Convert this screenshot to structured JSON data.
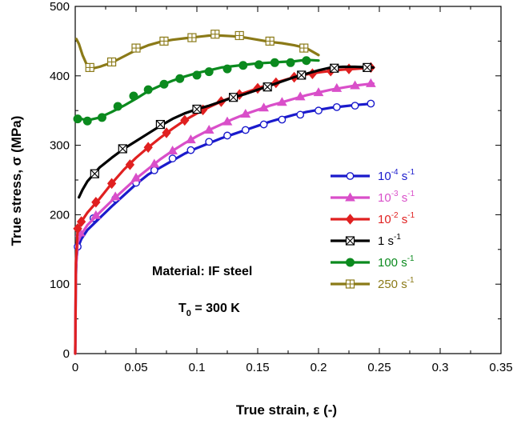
{
  "chart_data": {
    "type": "line",
    "xlabel": "True strain,  ε (-)",
    "ylabel": "True stress,  σ (MPa)",
    "xlim": [
      0,
      0.35
    ],
    "ylim": [
      0,
      500
    ],
    "xticks": [
      "0",
      "0.05",
      "0.1",
      "0.15",
      "0.2",
      "0.25",
      "0.3",
      "0.35"
    ],
    "yticks": [
      "0",
      "100",
      "200",
      "300",
      "400",
      "500"
    ],
    "grid": false,
    "legend_position": "right",
    "annotations": {
      "material": "Material: IF steel",
      "temp_main": "T",
      "temp_sub": "0",
      "temp_rest": " = 300 K"
    },
    "series": [
      {
        "name": "10-4 s-1",
        "label_base": "10",
        "label_exp": "-4",
        "label_unit": " s",
        "label_unit_exp": "-1",
        "color": "#1a1acc",
        "marker": "circle-open",
        "curve": [
          [
            0,
            0
          ],
          [
            0.0005,
            110
          ],
          [
            0.001,
            135
          ],
          [
            0.002,
            152
          ],
          [
            0.005,
            165
          ],
          [
            0.01,
            178
          ],
          [
            0.02,
            195
          ],
          [
            0.03,
            212
          ],
          [
            0.04,
            228
          ],
          [
            0.05,
            244
          ],
          [
            0.06,
            258
          ],
          [
            0.07,
            268
          ],
          [
            0.08,
            278
          ],
          [
            0.09,
            288
          ],
          [
            0.1,
            296
          ],
          [
            0.11,
            303
          ],
          [
            0.12,
            310
          ],
          [
            0.13,
            316
          ],
          [
            0.14,
            322
          ],
          [
            0.15,
            328
          ],
          [
            0.16,
            334
          ],
          [
            0.17,
            339
          ],
          [
            0.18,
            344
          ],
          [
            0.19,
            348
          ],
          [
            0.2,
            351
          ],
          [
            0.21,
            354
          ],
          [
            0.22,
            356
          ],
          [
            0.23,
            358
          ],
          [
            0.245,
            360
          ]
        ],
        "markers": [
          [
            0.002,
            154
          ],
          [
            0.015,
            195
          ],
          [
            0.033,
            223
          ],
          [
            0.05,
            246
          ],
          [
            0.065,
            264
          ],
          [
            0.08,
            281
          ],
          [
            0.095,
            293
          ],
          [
            0.11,
            305
          ],
          [
            0.125,
            314
          ],
          [
            0.14,
            322
          ],
          [
            0.155,
            330
          ],
          [
            0.17,
            337
          ],
          [
            0.185,
            344
          ],
          [
            0.2,
            350
          ],
          [
            0.215,
            355
          ],
          [
            0.23,
            357
          ],
          [
            0.243,
            360
          ]
        ]
      },
      {
        "name": "10-3 s-1",
        "label_base": "10",
        "label_exp": "-3",
        "label_unit": " s",
        "label_unit_exp": "-1",
        "color": "#d94fc9",
        "marker": "triangle",
        "curve": [
          [
            0,
            0
          ],
          [
            0.0005,
            120
          ],
          [
            0.002,
            160
          ],
          [
            0.005,
            172
          ],
          [
            0.01,
            185
          ],
          [
            0.02,
            203
          ],
          [
            0.03,
            220
          ],
          [
            0.04,
            236
          ],
          [
            0.05,
            252
          ],
          [
            0.06,
            266
          ],
          [
            0.07,
            280
          ],
          [
            0.08,
            292
          ],
          [
            0.09,
            303
          ],
          [
            0.1,
            313
          ],
          [
            0.11,
            322
          ],
          [
            0.12,
            330
          ],
          [
            0.13,
            338
          ],
          [
            0.14,
            345
          ],
          [
            0.15,
            351
          ],
          [
            0.16,
            357
          ],
          [
            0.17,
            362
          ],
          [
            0.18,
            367
          ],
          [
            0.19,
            372
          ],
          [
            0.2,
            376
          ],
          [
            0.21,
            380
          ],
          [
            0.22,
            383
          ],
          [
            0.23,
            386
          ],
          [
            0.245,
            389
          ]
        ],
        "markers": [
          [
            0.004,
            174
          ],
          [
            0.017,
            199
          ],
          [
            0.033,
            226
          ],
          [
            0.05,
            253
          ],
          [
            0.065,
            273
          ],
          [
            0.08,
            292
          ],
          [
            0.095,
            308
          ],
          [
            0.11,
            322
          ],
          [
            0.125,
            334
          ],
          [
            0.14,
            345
          ],
          [
            0.155,
            354
          ],
          [
            0.17,
            362
          ],
          [
            0.185,
            370
          ],
          [
            0.2,
            376
          ],
          [
            0.215,
            382
          ],
          [
            0.23,
            386
          ],
          [
            0.243,
            389
          ]
        ]
      },
      {
        "name": "10-2 s-1",
        "label_base": "10",
        "label_exp": "-2",
        "label_unit": " s",
        "label_unit_exp": "-1",
        "color": "#e02020",
        "marker": "diamond",
        "curve": [
          [
            0,
            0
          ],
          [
            0.0005,
            130
          ],
          [
            0.002,
            178
          ],
          [
            0.005,
            190
          ],
          [
            0.01,
            203
          ],
          [
            0.02,
            223
          ],
          [
            0.03,
            245
          ],
          [
            0.04,
            265
          ],
          [
            0.05,
            282
          ],
          [
            0.06,
            297
          ],
          [
            0.07,
            311
          ],
          [
            0.08,
            324
          ],
          [
            0.09,
            336
          ],
          [
            0.1,
            346
          ],
          [
            0.11,
            355
          ],
          [
            0.12,
            363
          ],
          [
            0.13,
            370
          ],
          [
            0.14,
            376
          ],
          [
            0.15,
            382
          ],
          [
            0.16,
            388
          ],
          [
            0.17,
            393
          ],
          [
            0.18,
            398
          ],
          [
            0.19,
            402
          ],
          [
            0.2,
            405
          ],
          [
            0.21,
            407
          ],
          [
            0.22,
            409
          ],
          [
            0.23,
            410
          ],
          [
            0.245,
            412
          ]
        ],
        "markers": [
          [
            0.002,
            180
          ],
          [
            0.005,
            190
          ],
          [
            0.017,
            218
          ],
          [
            0.03,
            245
          ],
          [
            0.045,
            272
          ],
          [
            0.06,
            297
          ],
          [
            0.075,
            318
          ],
          [
            0.09,
            336
          ],
          [
            0.105,
            351
          ],
          [
            0.12,
            363
          ],
          [
            0.135,
            373
          ],
          [
            0.15,
            382
          ],
          [
            0.165,
            390
          ],
          [
            0.18,
            398
          ],
          [
            0.195,
            403
          ],
          [
            0.21,
            407
          ],
          [
            0.225,
            410
          ],
          [
            0.243,
            412
          ]
        ]
      },
      {
        "name": "1 s-1",
        "label_base": "1",
        "label_exp": "",
        "label_unit": " s",
        "label_unit_exp": "-1",
        "color": "#000000",
        "marker": "square-x",
        "curve": [
          [
            0.003,
            225
          ],
          [
            0.006,
            236
          ],
          [
            0.01,
            248
          ],
          [
            0.015,
            258
          ],
          [
            0.02,
            268
          ],
          [
            0.03,
            282
          ],
          [
            0.04,
            295
          ],
          [
            0.05,
            306
          ],
          [
            0.06,
            317
          ],
          [
            0.07,
            328
          ],
          [
            0.08,
            338
          ],
          [
            0.09,
            346
          ],
          [
            0.1,
            352
          ],
          [
            0.11,
            357
          ],
          [
            0.12,
            363
          ],
          [
            0.13,
            369
          ],
          [
            0.14,
            374
          ],
          [
            0.15,
            380
          ],
          [
            0.16,
            386
          ],
          [
            0.17,
            392
          ],
          [
            0.18,
            398
          ],
          [
            0.19,
            403
          ],
          [
            0.2,
            408
          ],
          [
            0.21,
            412
          ],
          [
            0.22,
            413
          ],
          [
            0.23,
            413
          ],
          [
            0.245,
            412
          ]
        ],
        "markers": [
          [
            0.016,
            259
          ],
          [
            0.039,
            295
          ],
          [
            0.07,
            330
          ],
          [
            0.1,
            352
          ],
          [
            0.13,
            369
          ],
          [
            0.158,
            384
          ],
          [
            0.186,
            401
          ],
          [
            0.213,
            411
          ],
          [
            0.24,
            412
          ]
        ]
      },
      {
        "name": "100 s-1",
        "label_base": "100",
        "label_exp": "",
        "label_unit": " s",
        "label_unit_exp": "-1",
        "color": "#0b8a1e",
        "marker": "circle-filled",
        "curve": [
          [
            0.001,
            340
          ],
          [
            0.005,
            338
          ],
          [
            0.01,
            336
          ],
          [
            0.02,
            340
          ],
          [
            0.03,
            348
          ],
          [
            0.04,
            357
          ],
          [
            0.05,
            367
          ],
          [
            0.06,
            378
          ],
          [
            0.07,
            386
          ],
          [
            0.08,
            393
          ],
          [
            0.09,
            399
          ],
          [
            0.1,
            404
          ],
          [
            0.11,
            408
          ],
          [
            0.12,
            412
          ],
          [
            0.13,
            414
          ],
          [
            0.14,
            416
          ],
          [
            0.15,
            418
          ],
          [
            0.16,
            419
          ],
          [
            0.17,
            420
          ],
          [
            0.18,
            421
          ],
          [
            0.19,
            423
          ],
          [
            0.2,
            422
          ]
        ],
        "markers": [
          [
            0.002,
            338
          ],
          [
            0.01,
            335
          ],
          [
            0.022,
            340
          ],
          [
            0.035,
            356
          ],
          [
            0.048,
            371
          ],
          [
            0.06,
            380
          ],
          [
            0.073,
            388
          ],
          [
            0.086,
            396
          ],
          [
            0.1,
            401
          ],
          [
            0.11,
            406
          ],
          [
            0.125,
            410
          ],
          [
            0.138,
            415
          ],
          [
            0.151,
            416
          ],
          [
            0.164,
            419
          ],
          [
            0.177,
            419
          ],
          [
            0.19,
            422
          ]
        ]
      },
      {
        "name": "250 s-1",
        "label_base": "250",
        "label_exp": "",
        "label_unit": " s",
        "label_unit_exp": "-1",
        "color": "#8b7a18",
        "marker": "square-plus",
        "curve": [
          [
            0.001,
            453
          ],
          [
            0.003,
            446
          ],
          [
            0.006,
            430
          ],
          [
            0.01,
            414
          ],
          [
            0.015,
            411
          ],
          [
            0.02,
            413
          ],
          [
            0.03,
            419
          ],
          [
            0.04,
            428
          ],
          [
            0.05,
            437
          ],
          [
            0.06,
            444
          ],
          [
            0.07,
            449
          ],
          [
            0.08,
            452
          ],
          [
            0.09,
            454
          ],
          [
            0.1,
            456
          ],
          [
            0.11,
            458
          ],
          [
            0.12,
            458
          ],
          [
            0.13,
            457
          ],
          [
            0.14,
            455
          ],
          [
            0.15,
            452
          ],
          [
            0.16,
            449
          ],
          [
            0.17,
            447
          ],
          [
            0.18,
            444
          ],
          [
            0.19,
            440
          ],
          [
            0.2,
            430
          ]
        ],
        "markers": [
          [
            0.012,
            412
          ],
          [
            0.03,
            420
          ],
          [
            0.05,
            440
          ],
          [
            0.073,
            450
          ],
          [
            0.096,
            455
          ],
          [
            0.115,
            460
          ],
          [
            0.135,
            458
          ],
          [
            0.16,
            450
          ],
          [
            0.188,
            440
          ]
        ]
      }
    ]
  }
}
